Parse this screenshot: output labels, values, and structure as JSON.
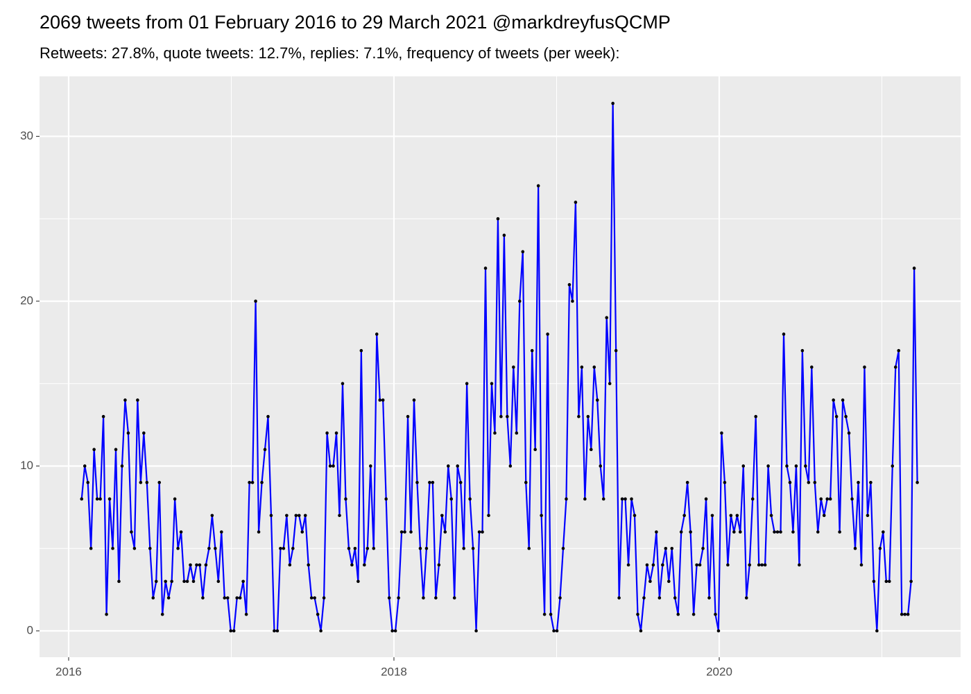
{
  "chart_data": {
    "type": "line",
    "title": "2069 tweets from 01 February 2016 to 29 March 2021 @markdreyfusQCMP",
    "subtitle": "Retweets: 27.8%, quote tweets: 12.7%, replies: 7.1%, frequency of tweets (per week):",
    "x": [
      2016.08,
      2016.0991,
      2016.1182,
      2016.1373,
      2016.1564,
      2016.1755,
      2016.1946,
      2016.2137,
      2016.2328,
      2016.2519,
      2016.271,
      2016.2901,
      2016.3092,
      2016.3283,
      2016.3474,
      2016.3665,
      2016.3856,
      2016.4047,
      2016.4238,
      2016.4429,
      2016.462,
      2016.4811,
      2016.5002,
      2016.5193,
      2016.5384,
      2016.5575,
      2016.5766,
      2016.5957,
      2016.6148,
      2016.6339,
      2016.653,
      2016.6721,
      2016.6912,
      2016.7103,
      2016.7294,
      2016.7485,
      2016.7676,
      2016.7867,
      2016.8058,
      2016.8249,
      2016.844,
      2016.8631,
      2016.8822,
      2016.9013,
      2016.9204,
      2016.9395,
      2016.9586,
      2016.9777,
      2016.9968,
      2017.0159,
      2017.035,
      2017.0541,
      2017.0732,
      2017.0923,
      2017.1114,
      2017.1305,
      2017.1496,
      2017.1687,
      2017.1878,
      2017.2069,
      2017.226,
      2017.2451,
      2017.2642,
      2017.2833,
      2017.3024,
      2017.3215,
      2017.3406,
      2017.3597,
      2017.3788,
      2017.3979,
      2017.417,
      2017.4361,
      2017.4552,
      2017.4743,
      2017.4934,
      2017.5125,
      2017.5316,
      2017.5507,
      2017.5698,
      2017.5889,
      2017.608,
      2017.6271,
      2017.6462,
      2017.6653,
      2017.6844,
      2017.7035,
      2017.7226,
      2017.7417,
      2017.7608,
      2017.7799,
      2017.799,
      2017.8181,
      2017.8372,
      2017.8563,
      2017.8754,
      2017.8945,
      2017.9136,
      2017.9327,
      2017.9518,
      2017.9709,
      2017.99,
      2018.0091,
      2018.0282,
      2018.0473,
      2018.0664,
      2018.0855,
      2018.1046,
      2018.1237,
      2018.1428,
      2018.1619,
      2018.181,
      2018.2001,
      2018.2192,
      2018.2383,
      2018.2574,
      2018.2765,
      2018.2956,
      2018.3147,
      2018.3338,
      2018.3529,
      2018.372,
      2018.3911,
      2018.4102,
      2018.4293,
      2018.4484,
      2018.4675,
      2018.4866,
      2018.5057,
      2018.5248,
      2018.5439,
      2018.563,
      2018.5821,
      2018.6012,
      2018.6203,
      2018.6394,
      2018.6585,
      2018.6776,
      2018.6967,
      2018.7158,
      2018.7349,
      2018.754,
      2018.7731,
      2018.7922,
      2018.8113,
      2018.8304,
      2018.8495,
      2018.8686,
      2018.8877,
      2018.9068,
      2018.9259,
      2018.945,
      2018.9641,
      2018.9832,
      2019.0023,
      2019.0214,
      2019.0405,
      2019.0596,
      2019.0787,
      2019.0978,
      2019.1169,
      2019.136,
      2019.1551,
      2019.1742,
      2019.1933,
      2019.2124,
      2019.2315,
      2019.2506,
      2019.2697,
      2019.2888,
      2019.3079,
      2019.327,
      2019.3461,
      2019.3652,
      2019.3843,
      2019.4034,
      2019.4225,
      2019.4416,
      2019.4607,
      2019.4798,
      2019.4989,
      2019.518,
      2019.5371,
      2019.5562,
      2019.5753,
      2019.5944,
      2019.6135,
      2019.6326,
      2019.6517,
      2019.6708,
      2019.6899,
      2019.709,
      2019.7281,
      2019.7472,
      2019.7663,
      2019.7854,
      2019.8045,
      2019.8236,
      2019.8427,
      2019.8618,
      2019.8809,
      2019.9,
      2019.9191,
      2019.9382,
      2019.9573,
      2019.9764,
      2019.9955,
      2020.0146,
      2020.0337,
      2020.0528,
      2020.0719,
      2020.091,
      2020.1101,
      2020.1292,
      2020.1483,
      2020.1674,
      2020.1865,
      2020.2056,
      2020.2247,
      2020.2438,
      2020.2629,
      2020.282,
      2020.3011,
      2020.3202,
      2020.3393,
      2020.3584,
      2020.3775,
      2020.3966,
      2020.4157,
      2020.4348,
      2020.4539,
      2020.473,
      2020.4921,
      2020.5112,
      2020.5303,
      2020.5494,
      2020.5685,
      2020.5876,
      2020.6067,
      2020.6258,
      2020.6449,
      2020.664,
      2020.6831,
      2020.7022,
      2020.7213,
      2020.7404,
      2020.7595,
      2020.7786,
      2020.7977,
      2020.8168,
      2020.8359,
      2020.855,
      2020.8741,
      2020.8932,
      2020.9123,
      2020.9314,
      2020.9505,
      2020.9696,
      2020.9887,
      2021.0078,
      2021.0269,
      2021.046,
      2021.0651,
      2021.0842,
      2021.1033,
      2021.1224,
      2021.1415,
      2021.1606,
      2021.1797,
      2021.1988,
      2021.2179
    ],
    "series": [
      {
        "color": "#0000ff",
        "marker_color": "#000000",
        "values": [
          8,
          10,
          9,
          5,
          11,
          8,
          8,
          13,
          1,
          8,
          5,
          11,
          3,
          10,
          14,
          12,
          6,
          5,
          14,
          9,
          12,
          9,
          5,
          2,
          3,
          9,
          1,
          3,
          2,
          3,
          8,
          5,
          6,
          3,
          3,
          4,
          3,
          4,
          4,
          2,
          4,
          5,
          7,
          5,
          3,
          6,
          2,
          2,
          0,
          0,
          2,
          2,
          3,
          1,
          9,
          9,
          20,
          6,
          9,
          11,
          13,
          7,
          0,
          0,
          5,
          5,
          7,
          4,
          5,
          7,
          7,
          6,
          7,
          4,
          2,
          2,
          1,
          0,
          2,
          12,
          10,
          10,
          12,
          7,
          15,
          8,
          5,
          4,
          5,
          3,
          17,
          4,
          5,
          10,
          5,
          18,
          14,
          14,
          8,
          2,
          0,
          0,
          2,
          6,
          6,
          13,
          6,
          14,
          9,
          5,
          2,
          5,
          9,
          9,
          2,
          4,
          7,
          6,
          10,
          8,
          2,
          10,
          9,
          5,
          15,
          8,
          5,
          0,
          6,
          6,
          22,
          7,
          15,
          12,
          25,
          13,
          24,
          13,
          10,
          16,
          12,
          20,
          23,
          9,
          5,
          17,
          11,
          27,
          7,
          1,
          18,
          1,
          0,
          0,
          2,
          5,
          8,
          21,
          20,
          26,
          13,
          16,
          8,
          13,
          11,
          16,
          14,
          10,
          8,
          19,
          15,
          32,
          17,
          2,
          8,
          8,
          4,
          8,
          7,
          1,
          0,
          2,
          4,
          3,
          4,
          6,
          2,
          4,
          5,
          3,
          5,
          2,
          1,
          6,
          7,
          9,
          6,
          1,
          4,
          4,
          5,
          8,
          2,
          7,
          1,
          0,
          12,
          9,
          4,
          7,
          6,
          7,
          6,
          10,
          2,
          4,
          8,
          13,
          4,
          4,
          4,
          10,
          7,
          6,
          6,
          6,
          18,
          10,
          9,
          6,
          10,
          4,
          17,
          10,
          9,
          16,
          9,
          6,
          8,
          7,
          8,
          8,
          14,
          13,
          6,
          14,
          13,
          12,
          8,
          5,
          9,
          4,
          16,
          7,
          9,
          3,
          0,
          5,
          6,
          3,
          3,
          10,
          16,
          17,
          1,
          1,
          1,
          3,
          22,
          9
        ]
      }
    ],
    "xlim": [
      2015.821,
      2021.484
    ],
    "xticks": [
      2016,
      2018,
      2020
    ],
    "x_minor_ticks": [
      2017,
      2019,
      2021
    ],
    "ylim": [
      -1.6,
      33.64
    ],
    "yticks": [
      0,
      10,
      20,
      30
    ],
    "y_minor_ticks": [
      5,
      15,
      25
    ],
    "grid": true
  }
}
